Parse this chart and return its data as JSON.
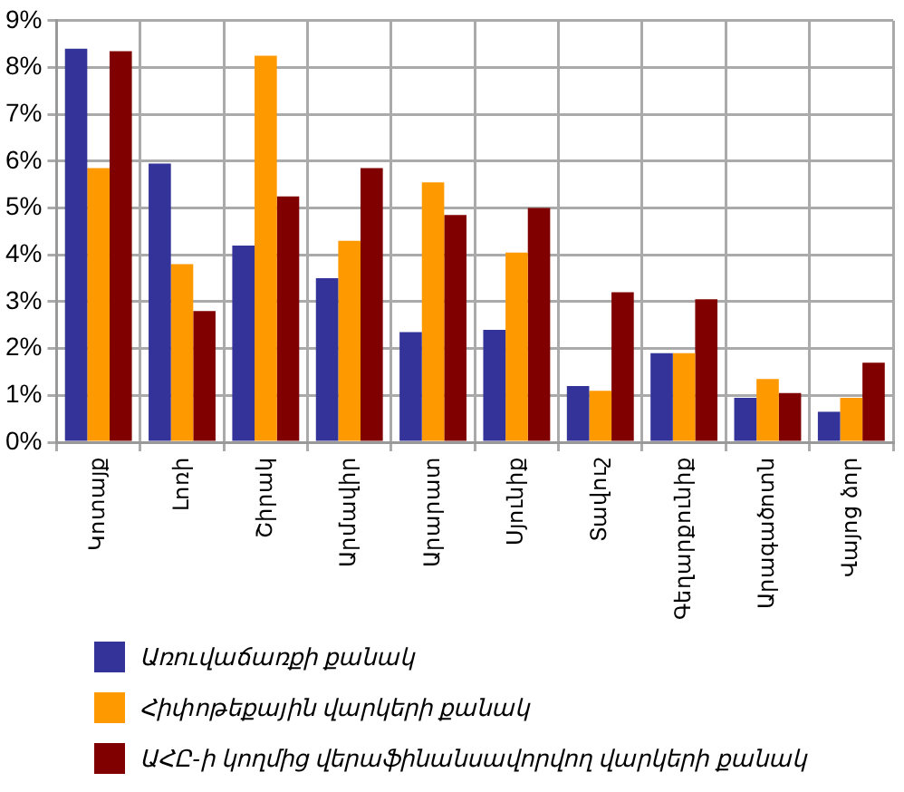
{
  "chart_data": {
    "type": "bar",
    "categories": [
      "Կոտայք",
      "Լոռի",
      "Շիրակ",
      "Արմավիր",
      "Արարատ",
      "Սյունիք",
      "Տավուշ",
      "Գեղարքունիք",
      "Արագածոտն",
      "Վայոց ձոր"
    ],
    "series": [
      {
        "name": "Առուվաճառքի քանակ",
        "color": "#333399",
        "values": [
          8.4,
          5.95,
          4.2,
          3.5,
          2.35,
          2.4,
          1.2,
          1.9,
          0.95,
          0.65
        ]
      },
      {
        "name": "Հիփոթեքային վարկերի քանակ",
        "color": "#ff9900",
        "values": [
          5.85,
          3.8,
          8.25,
          4.3,
          5.55,
          4.05,
          1.1,
          1.9,
          1.35,
          0.95
        ]
      },
      {
        "name": "ԱՀԸ-ի կողմից վերաֆինանսավորվող վարկերի քանակ",
        "color": "#800000",
        "values": [
          8.35,
          2.8,
          5.25,
          5.85,
          4.85,
          5.0,
          3.2,
          3.05,
          1.05,
          1.7
        ]
      }
    ],
    "ylim": [
      0,
      9
    ],
    "yticks": [
      {
        "value": 0,
        "label": "0%"
      },
      {
        "value": 1,
        "label": "1%"
      },
      {
        "value": 2,
        "label": "2%"
      },
      {
        "value": 3,
        "label": "3%"
      },
      {
        "value": 4,
        "label": "4%"
      },
      {
        "value": 5,
        "label": "5%"
      },
      {
        "value": 6,
        "label": "6%"
      },
      {
        "value": 7,
        "label": "7%"
      },
      {
        "value": 8,
        "label": "8%"
      },
      {
        "value": 9,
        "label": "9%"
      }
    ],
    "grid": true,
    "legend": "bottom"
  }
}
